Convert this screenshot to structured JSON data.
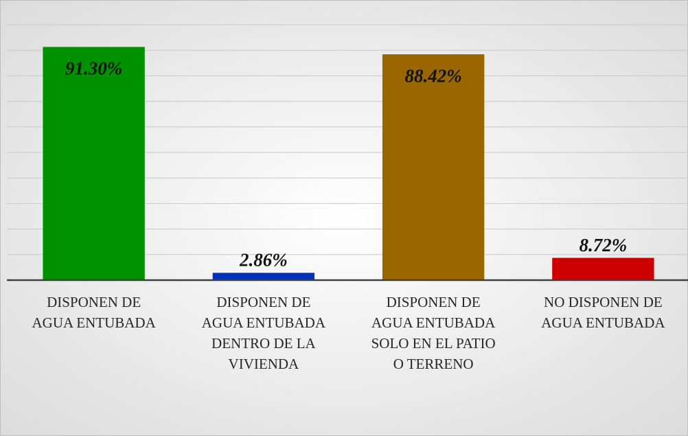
{
  "chart_data": {
    "type": "bar",
    "categories": [
      "DISPONEN DE\nAGUA ENTUBADA",
      "DISPONEN DE\nAGUA ENTUBADA\nDENTRO DE LA\nVIVIENDA",
      "DISPONEN DE\nAGUA ENTUBADA\nSOLO EN EL PATIO\nO TERRENO",
      "NO DISPONEN DE\nAGUA ENTUBADA"
    ],
    "values": [
      91.3,
      2.86,
      88.42,
      8.72
    ],
    "value_labels": [
      "91.30%",
      "2.86%",
      "88.42%",
      "8.72%"
    ],
    "colors": [
      "#009100",
      "#0033bb",
      "#996600",
      "#cc0000"
    ],
    "ylim": [
      0,
      100
    ],
    "yticks": [
      0,
      10,
      20,
      30,
      40,
      50,
      60,
      70,
      80,
      90,
      100
    ],
    "grid": true
  }
}
